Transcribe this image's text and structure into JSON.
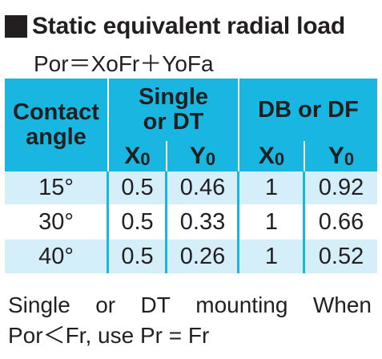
{
  "title": "Static equivalent radial load",
  "formula": "Por＝XoFr＋YoFa",
  "table": {
    "header": {
      "contact_angle_line1": "Contact",
      "contact_angle_line2": "angle",
      "group1_line1": "Single",
      "group1_line2": "or DT",
      "group2": "DB or DF",
      "x0_letter": "X",
      "x0_sub": "0",
      "y0_letter": "Y",
      "y0_sub": "0"
    },
    "rows": [
      {
        "angle": "15°",
        "single_x0": "0.5",
        "single_y0": "0.46",
        "db_x0": "1",
        "db_y0": "0.92"
      },
      {
        "angle": "30°",
        "single_x0": "0.5",
        "single_y0": "0.33",
        "db_x0": "1",
        "db_y0": "0.66"
      },
      {
        "angle": "40°",
        "single_x0": "0.5",
        "single_y0": "0.26",
        "db_x0": "1",
        "db_y0": "0.52"
      }
    ]
  },
  "note": {
    "words_line1": [
      "Single",
      "or",
      "DT",
      "mounting",
      "When"
    ],
    "line2": "Por＜Fr, use Pr = Fr"
  },
  "colors": {
    "header_bg": "#1ab6e2",
    "row_light_bg": "#d4eefa",
    "text": "#231f20"
  }
}
